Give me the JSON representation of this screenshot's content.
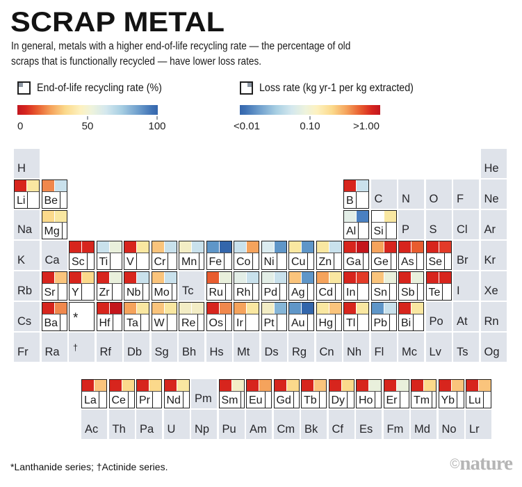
{
  "header": {
    "title": "SCRAP METAL",
    "subtitle_line1": "In general, metals with a higher end-of-life recycling rate — the percentage of old",
    "subtitle_line2": "scraps that is functionally recycled — have lower loss rates."
  },
  "legends": {
    "recycling": {
      "label": "End-of-life recycling rate (%)",
      "ticks": [
        "0",
        "50",
        "100"
      ],
      "icon": "square-top-left-corner-icon"
    },
    "loss": {
      "label": "Loss rate (kg yr-1 per kg extracted)",
      "ticks": [
        "<0.01",
        "0.10",
        ">1.00"
      ],
      "icon": "square-top-right-corner-icon"
    }
  },
  "footer": {
    "note": "*Lanthanide series; †Actinide series.",
    "credit_symbol": "©",
    "credit_name": "nature"
  },
  "chart_data": {
    "type": "heatmap",
    "title": "SCRAP METAL",
    "subtitle": "In general, metals with a higher end-of-life recycling rate — the percentage of old scraps that is functionally recycled — have lower loss rates.",
    "encoding": {
      "left_square": "End-of-life recycling rate (%)",
      "right_square": "Loss rate (kg yr-1 per kg extracted)"
    },
    "recycling_scale": {
      "domain": [
        "0",
        "50",
        "100"
      ],
      "colors": [
        "#d7261f",
        "#fdf1c0",
        "#3f72b5"
      ]
    },
    "loss_scale": {
      "domain": [
        "<0.01",
        "0.10",
        ">1.00"
      ],
      "colors": [
        "#3f72b5",
        "#fdf1c0",
        "#d7261f"
      ]
    },
    "palette": {
      "red": "#d7251d",
      "red2": "#e23b28",
      "darkRed": "#c4161c",
      "redOrange": "#e85c2f",
      "orange": "#f0884d",
      "orange2": "#f5a35c",
      "paleOrange": "#fac47c",
      "gold": "#fbd98b",
      "paleYellow": "#f9e7a1",
      "cream": "#f3edc5",
      "paleGreen": "#e9f0dc",
      "paleBlueGreen": "#e3eee7",
      "paleBlue": "#dcecf0",
      "lightBlue": "#c9e1ec",
      "medLightBlue": "#85b5d7",
      "medBlue": "#5f96c8",
      "blue": "#4a80c1",
      "darkBlue": "#3366ab",
      "white": "#ffffff"
    },
    "rows": [
      [
        "H",
        "",
        "",
        "",
        "",
        "",
        "",
        "",
        "",
        "",
        "",
        "",
        "",
        "",
        "",
        "",
        "",
        "He"
      ],
      [
        "Li|red|paleYellow",
        "Be|orange|lightBlue",
        "",
        "",
        "",
        "",
        "",
        "",
        "",
        "",
        "",
        "",
        "B|red|lightBlue",
        "C",
        "N",
        "O",
        "F",
        "Ne"
      ],
      [
        "Na",
        "Mg|gold|paleYellow",
        "",
        "",
        "",
        "",
        "",
        "",
        "",
        "",
        "",
        "",
        "Al|paleBlueGreen|blue",
        "Si|white|paleYellow",
        "P",
        "S",
        "Cl",
        "Ar"
      ],
      [
        "K",
        "Ca",
        "Sc|red|red",
        "Ti|lightBlue|paleGreen",
        "V|red|paleYellow",
        "Cr|paleOrange|lightBlue",
        "Mn|cream|lightBlue",
        "Fe|medBlue|darkBlue",
        "Co|lightBlue|orange2",
        "Ni|paleBlue|medBlue",
        "Cu|paleYellow|medBlue",
        "Zn|paleYellow|lightBlue",
        "Ga|red|darkRed",
        "Ge|orange2|red",
        "As|red|redOrange",
        "Se|red|red2",
        "Br",
        "Kr"
      ],
      [
        "Rb",
        "Sr|red|paleOrange",
        "Y|red|gold",
        "Zr|red|paleGreen",
        "Nb|red|lightBlue",
        "Mo|paleOrange|lightBlue",
        "Tc",
        "Ru|redOrange|paleGreen",
        "Rh|paleBlueGreen|lightBlue",
        "Pd|paleBlueGreen|lightBlue",
        "Ag|paleOrange|medBlue",
        "Cd|orange2|paleYellow",
        "In|red|red2",
        "Sn|paleOrange|paleGreen",
        "Sb|red|paleGreen",
        "Te|red|red",
        "I",
        "Xe"
      ],
      [
        "Cs",
        "Ba|red|orange",
        "*|m",
        "Hf|red|darkRed",
        "Ta|orange2|paleYellow",
        "W|paleOrange|paleYellow",
        "Re|cream|cream",
        "Os|red|orange",
        "Ir|orange2|paleYellow",
        "Pt|cream|medLightBlue",
        "Au|medBlue|darkBlue",
        "Hg|paleYellow|paleOrange",
        "Tl|red|paleYellow",
        "Pb|medBlue|lightBlue",
        "Bi|red|paleYellow",
        "Po",
        "At",
        "Rn"
      ],
      [
        "Fr",
        "Ra",
        "†|g",
        "Rf",
        "Db",
        "Sg",
        "Bh",
        "Hs",
        "Mt",
        "Ds",
        "Rg",
        "Cn",
        "Nh",
        "Fl",
        "Mc",
        "Lv",
        "Ts",
        "Og"
      ]
    ],
    "series_rows": [
      [
        "La|red|paleOrange",
        "Ce|red|gold",
        "Pr|red|gold",
        "Nd|red|paleYellow",
        "Pm",
        "Sm|red|cream",
        "Eu|red|orange2",
        "Gd|red|gold",
        "Tb|red|paleOrange",
        "Dy|red|gold",
        "Ho|red|paleGreen",
        "Er|red|paleGreen",
        "Tm|red|gold",
        "Yb|red|paleOrange",
        "Lu|red|paleOrange"
      ],
      [
        "Ac",
        "Th",
        "Pa",
        "U",
        "Np",
        "Pu",
        "Am",
        "Cm",
        "Bk",
        "Cf",
        "Es",
        "Fm",
        "Md",
        "No",
        "Lr"
      ]
    ]
  }
}
